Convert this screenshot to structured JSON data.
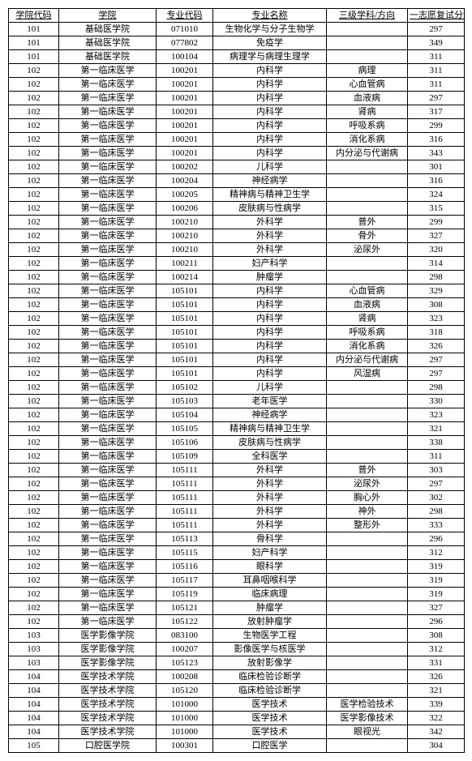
{
  "columns": [
    "学院代码",
    "学院",
    "专业代码",
    "专业名称",
    "三级学科/方向",
    "一志愿复试分数线"
  ],
  "rows": [
    [
      "101",
      "基础医学院",
      "071010",
      "生物化学与分子生物学",
      "",
      "297"
    ],
    [
      "101",
      "基础医学院",
      "077802",
      "免疫学",
      "",
      "349"
    ],
    [
      "101",
      "基础医学院",
      "100104",
      "病理学与病理生理学",
      "",
      "311"
    ],
    [
      "102",
      "第一临床医学",
      "100201",
      "内科学",
      "病理",
      "311"
    ],
    [
      "102",
      "第一临床医学",
      "100201",
      "内科学",
      "心血管病",
      "311"
    ],
    [
      "102",
      "第一临床医学",
      "100201",
      "内科学",
      "血液病",
      "297"
    ],
    [
      "102",
      "第一临床医学",
      "100201",
      "内科学",
      "肾病",
      "317"
    ],
    [
      "102",
      "第一临床医学",
      "100201",
      "内科学",
      "呼吸系病",
      "299"
    ],
    [
      "102",
      "第一临床医学",
      "100201",
      "内科学",
      "消化系病",
      "316"
    ],
    [
      "102",
      "第一临床医学",
      "100201",
      "内科学",
      "内分泌与代谢病",
      "343"
    ],
    [
      "102",
      "第一临床医学",
      "100202",
      "儿科学",
      "",
      "301"
    ],
    [
      "102",
      "第一临床医学",
      "100204",
      "神经病学",
      "",
      "316"
    ],
    [
      "102",
      "第一临床医学",
      "100205",
      "精神病与精神卫生学",
      "",
      "324"
    ],
    [
      "102",
      "第一临床医学",
      "100206",
      "皮肤病与性病学",
      "",
      "315"
    ],
    [
      "102",
      "第一临床医学",
      "100210",
      "外科学",
      "普外",
      "299"
    ],
    [
      "102",
      "第一临床医学",
      "100210",
      "外科学",
      "骨外",
      "327"
    ],
    [
      "102",
      "第一临床医学",
      "100210",
      "外科学",
      "泌尿外",
      "320"
    ],
    [
      "102",
      "第一临床医学",
      "100211",
      "妇产科学",
      "",
      "314"
    ],
    [
      "102",
      "第一临床医学",
      "100214",
      "肿瘤学",
      "",
      "298"
    ],
    [
      "102",
      "第一临床医学",
      "105101",
      "内科学",
      "心血管病",
      "329"
    ],
    [
      "102",
      "第一临床医学",
      "105101",
      "内科学",
      "血液病",
      "308"
    ],
    [
      "102",
      "第一临床医学",
      "105101",
      "内科学",
      "肾病",
      "323"
    ],
    [
      "102",
      "第一临床医学",
      "105101",
      "内科学",
      "呼吸系病",
      "318"
    ],
    [
      "102",
      "第一临床医学",
      "105101",
      "内科学",
      "消化系病",
      "326"
    ],
    [
      "102",
      "第一临床医学",
      "105101",
      "内科学",
      "内分泌与代谢病",
      "297"
    ],
    [
      "102",
      "第一临床医学",
      "105101",
      "内科学",
      "风湿病",
      "297"
    ],
    [
      "102",
      "第一临床医学",
      "105102",
      "儿科学",
      "",
      "298"
    ],
    [
      "102",
      "第一临床医学",
      "105103",
      "老年医学",
      "",
      "330"
    ],
    [
      "102",
      "第一临床医学",
      "105104",
      "神经病学",
      "",
      "323"
    ],
    [
      "102",
      "第一临床医学",
      "105105",
      "精神病与精神卫生学",
      "",
      "321"
    ],
    [
      "102",
      "第一临床医学",
      "105106",
      "皮肤病与性病学",
      "",
      "338"
    ],
    [
      "102",
      "第一临床医学",
      "105109",
      "全科医学",
      "",
      "311"
    ],
    [
      "102",
      "第一临床医学",
      "105111",
      "外科学",
      "普外",
      "303"
    ],
    [
      "102",
      "第一临床医学",
      "105111",
      "外科学",
      "泌尿外",
      "297"
    ],
    [
      "102",
      "第一临床医学",
      "105111",
      "外科学",
      "胸心外",
      "302"
    ],
    [
      "102",
      "第一临床医学",
      "105111",
      "外科学",
      "神外",
      "298"
    ],
    [
      "102",
      "第一临床医学",
      "105111",
      "外科学",
      "整形外",
      "333"
    ],
    [
      "102",
      "第一临床医学",
      "105113",
      "骨科学",
      "",
      "296"
    ],
    [
      "102",
      "第一临床医学",
      "105115",
      "妇产科学",
      "",
      "312"
    ],
    [
      "102",
      "第一临床医学",
      "105116",
      "眼科学",
      "",
      "319"
    ],
    [
      "102",
      "第一临床医学",
      "105117",
      "耳鼻咽喉科学",
      "",
      "319"
    ],
    [
      "102",
      "第一临床医学",
      "105119",
      "临床病理",
      "",
      "319"
    ],
    [
      "102",
      "第一临床医学",
      "105121",
      "肿瘤学",
      "",
      "327"
    ],
    [
      "102",
      "第一临床医学",
      "105122",
      "放射肿瘤学",
      "",
      "296"
    ],
    [
      "103",
      "医学影像学院",
      "083100",
      "生物医学工程",
      "",
      "308"
    ],
    [
      "103",
      "医学影像学院",
      "100207",
      "影像医学与核医学",
      "",
      "312"
    ],
    [
      "103",
      "医学影像学院",
      "105123",
      "放射影像学",
      "",
      "331"
    ],
    [
      "104",
      "医学技术学院",
      "100208",
      "临床检验诊断学",
      "",
      "326"
    ],
    [
      "104",
      "医学技术学院",
      "105120",
      "临床检验诊断学",
      "",
      "321"
    ],
    [
      "104",
      "医学技术学院",
      "101000",
      "医学技术",
      "医学检验技术",
      "339"
    ],
    [
      "104",
      "医学技术学院",
      "101000",
      "医学技术",
      "医学影像技术",
      "322"
    ],
    [
      "104",
      "医学技术学院",
      "101000",
      "医学技术",
      "眼视光",
      "342"
    ],
    [
      "105",
      "口腔医学院",
      "100301",
      "口腔医学",
      "",
      "304"
    ]
  ]
}
